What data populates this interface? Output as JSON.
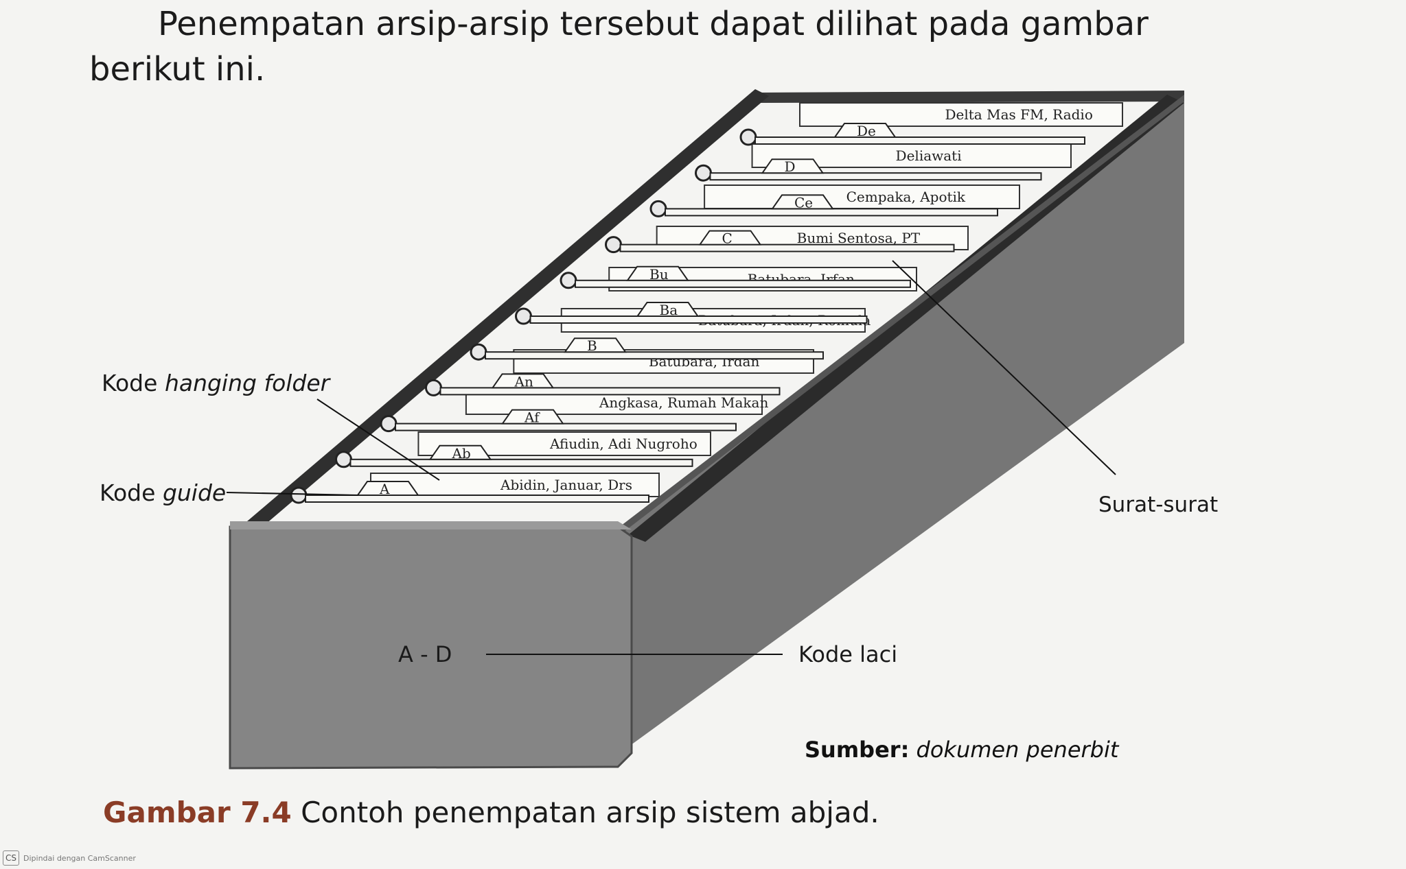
{
  "intro_text": "Penempatan arsip-arsip tersebut dapat dilihat pada gambar berikut ini.",
  "figure": {
    "labels": {
      "kode_hanging_folder_prefix": "Kode",
      "kode_hanging_folder_italic": "hanging folder",
      "kode_guide_prefix": "Kode",
      "kode_guide_italic": "guide",
      "surat_surat": "Surat-surat",
      "drawer_code": "A - D",
      "kode_laci": "Kode laci"
    },
    "guide_tabs": [
      "A",
      "Ab",
      "Af",
      "An",
      "B",
      "Ba",
      "Bu",
      "C",
      "Ce",
      "D",
      "De"
    ],
    "folder_labels": [
      "Abidin, Januar, Drs",
      "Afiudin, Adi Nugroho",
      "Angkasa, Rumah Makan",
      "Batubara, Irdan",
      "Batubara, Irdan, Romula",
      "Batubara, Irfan",
      "Bumi Sentosa, PT",
      "Cempaka, Apotik",
      "Deliawati",
      "Delta Mas FM, Radio"
    ]
  },
  "source": {
    "label": "Sumber:",
    "value": "dokumen penerbit"
  },
  "caption": {
    "number": "Gambar 7.4",
    "text": "Contoh penempatan arsip sistem abjad."
  },
  "scanner_watermark": {
    "logo": "CS",
    "text": "Dipindai dengan CamScanner"
  }
}
